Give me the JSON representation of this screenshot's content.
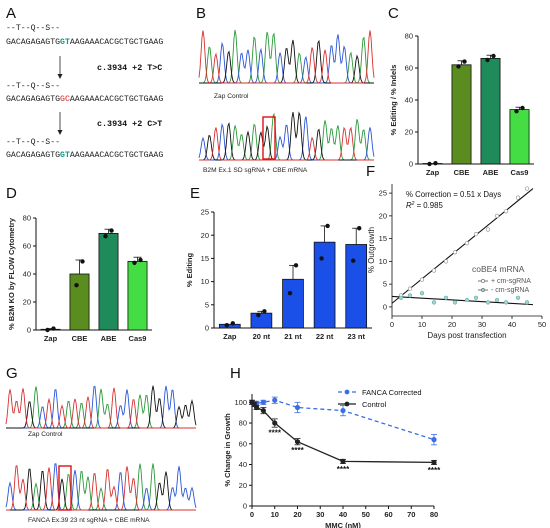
{
  "panels": {
    "A": "A",
    "B": "B",
    "C": "C",
    "D": "D",
    "E": "E",
    "F": "F",
    "G": "G",
    "H": "H"
  },
  "panelA": {
    "codon_line": "--T--Q--S--",
    "seq_prefix": "GACAGAGAGTG",
    "seq_suffix": "AAGAAACACGCTGCTGAAG",
    "rows": [
      {
        "mid": "GT",
        "mid_color": "#0f9a8a"
      },
      {
        "mid": "GC",
        "mid_color": "#d62020"
      },
      {
        "mid": "GT",
        "mid_color": "#0f9a8a"
      }
    ],
    "mutations": [
      "c.3934 +2 T>C",
      "c.3934 +2 C>T"
    ]
  },
  "panelB": {
    "top_caption": "Zap Control",
    "bottom_caption": "B2M Ex.1 SD sgRNA + CBE mRNA"
  },
  "panelG": {
    "top_caption": "Zap Control",
    "bottom_caption": "FANCA Ex.39 23 nt sgRNA + CBE mRNA"
  },
  "chart_data": [
    {
      "panel": "C",
      "type": "bar",
      "categories": [
        "Zap",
        "CBE",
        "ABE",
        "Cas9"
      ],
      "values": [
        0.3,
        62,
        66,
        34
      ],
      "errors": [
        0.3,
        2.5,
        2,
        1.5
      ],
      "points": [
        [
          0,
          0.5
        ],
        [
          61,
          64
        ],
        [
          65,
          67.5
        ],
        [
          33,
          35
        ]
      ],
      "colors": [
        "#2f4f1f",
        "#5a8c1f",
        "#1f8a5a",
        "#44dd44"
      ],
      "ylabel": "% Editing / % Indels",
      "ylim": [
        0,
        80
      ],
      "yticks": [
        0,
        20,
        40,
        60,
        80
      ]
    },
    {
      "panel": "D",
      "type": "bar",
      "categories": [
        "Zap",
        "CBE",
        "ABE",
        "Cas9"
      ],
      "values": [
        0.5,
        40,
        69,
        49
      ],
      "errors": [
        0.5,
        10,
        3,
        3
      ],
      "points": [
        [
          0,
          1
        ],
        [
          32,
          49
        ],
        [
          67,
          71
        ],
        [
          48,
          50
        ]
      ],
      "colors": [
        "#2f4f1f",
        "#5a8c1f",
        "#1f8a5a",
        "#44dd44"
      ],
      "ylabel": "% B2M KO by FLOW Cytometry",
      "ylim": [
        0,
        80
      ],
      "yticks": [
        0,
        20,
        40,
        60,
        80
      ]
    },
    {
      "panel": "E",
      "type": "bar",
      "categories": [
        "Zap",
        "20 nt",
        "21 nt",
        "22 nt",
        "23 nt"
      ],
      "values": [
        0.8,
        3.2,
        10.5,
        18.5,
        18
      ],
      "errors": [
        0.3,
        0.4,
        3,
        3.5,
        3.5
      ],
      "points": [
        [
          0.6,
          1.0
        ],
        [
          2.8,
          3.6
        ],
        [
          7.5,
          13.5
        ],
        [
          15,
          22
        ],
        [
          14.5,
          21.5
        ]
      ],
      "color": "#1a4fe8",
      "ylabel": "% Editing",
      "ylim": [
        0,
        25
      ],
      "yticks": [
        0,
        5,
        10,
        15,
        20,
        25
      ]
    },
    {
      "panel": "F",
      "type": "scatter",
      "xlabel": "Days post transfection",
      "ylabel": "% Outgrowth",
      "xlim": [
        0,
        50
      ],
      "ylim": [
        -2,
        27
      ],
      "xticks": [
        0,
        10,
        20,
        30,
        40,
        50
      ],
      "yticks": [
        0,
        5,
        10,
        15,
        20,
        25
      ],
      "annotation": "% Correction = 0.51 x Days",
      "annotation_r2_label": "R",
      "annotation_r2_value": "= 0.985",
      "legend_title": "coBE4 mRNA",
      "series": [
        {
          "name": "+ cm-sgRNA",
          "x": [
            3,
            6,
            10,
            14,
            18,
            21,
            25,
            28,
            32,
            35,
            38,
            42,
            45
          ],
          "y": [
            2.5,
            4,
            6,
            8,
            10,
            12,
            14,
            16,
            17,
            20,
            21,
            24,
            26
          ],
          "fit": [
            [
              0,
              0.8
            ],
            [
              47,
              26
            ]
          ]
        },
        {
          "name": "- cm-sgRNA",
          "x": [
            3,
            6,
            10,
            14,
            18,
            21,
            25,
            28,
            32,
            35,
            38,
            42,
            45
          ],
          "y": [
            2,
            2.5,
            3,
            1,
            2,
            1,
            1.5,
            2,
            1,
            1.5,
            1,
            2,
            1
          ],
          "fit": [
            [
              0,
              2.3
            ],
            [
              47,
              0.5
            ]
          ]
        }
      ]
    },
    {
      "panel": "H",
      "type": "line",
      "xlabel": "MMC (nM)",
      "ylabel": "% Change in Growth",
      "xlim": [
        0,
        80
      ],
      "ylim": [
        0,
        108
      ],
      "xticks": [
        0,
        10,
        20,
        30,
        40,
        50,
        60,
        70,
        80
      ],
      "yticks": [
        0,
        20,
        40,
        60,
        80,
        100
      ],
      "series": [
        {
          "name": "FANCA Corrected",
          "x": [
            0,
            1,
            2,
            5,
            10,
            20,
            40,
            80
          ],
          "y": [
            100,
            99,
            99,
            100,
            102,
            95,
            92,
            64
          ],
          "err": [
            2,
            2,
            2,
            2,
            3,
            5,
            5,
            5
          ],
          "color": "#3a6ee8",
          "dash": true
        },
        {
          "name": "Control",
          "x": [
            0,
            1,
            2,
            5,
            10,
            20,
            40,
            80
          ],
          "y": [
            100,
            98,
            95,
            92,
            80,
            62,
            43,
            42
          ],
          "err": [
            2,
            2,
            2,
            3,
            4,
            3,
            2,
            2
          ],
          "color": "#222222",
          "dash": false
        }
      ],
      "significance": [
        {
          "x": 10,
          "label": "****"
        },
        {
          "x": 20,
          "label": "****"
        },
        {
          "x": 40,
          "label": "****"
        },
        {
          "x": 80,
          "label": "****"
        }
      ]
    }
  ]
}
